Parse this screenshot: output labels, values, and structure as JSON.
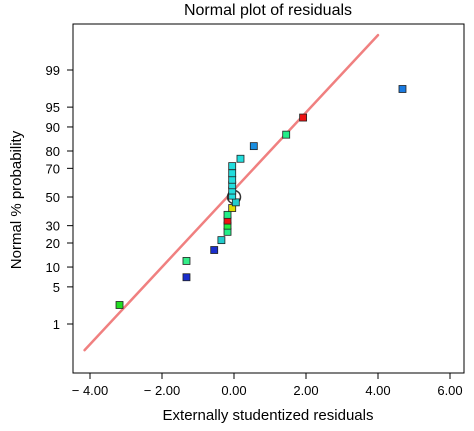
{
  "chart_data": {
    "type": "scatter",
    "title": "Normal plot of residuals",
    "xlabel": "Externally studentized residuals",
    "ylabel": "Normal % probability",
    "xlim": [
      -4.5,
      6.3
    ],
    "x_ticks": [
      {
        "value": -4,
        "label": "− 4.00"
      },
      {
        "value": -2,
        "label": "− 2.00"
      },
      {
        "value": 0,
        "label": "0.00"
      },
      {
        "value": 2,
        "label": "2.00"
      },
      {
        "value": 4,
        "label": "4.00"
      },
      {
        "value": 6,
        "label": "6.00"
      }
    ],
    "y_scale": "normal-probability",
    "y_ticks": [
      {
        "value": 1,
        "label": "1"
      },
      {
        "value": 5,
        "label": "5"
      },
      {
        "value": 10,
        "label": "10"
      },
      {
        "value": 20,
        "label": "20"
      },
      {
        "value": 30,
        "label": "30"
      },
      {
        "value": 50,
        "label": "50"
      },
      {
        "value": 70,
        "label": "70"
      },
      {
        "value": 80,
        "label": "80"
      },
      {
        "value": 90,
        "label": "90"
      },
      {
        "value": 95,
        "label": "95"
      },
      {
        "value": 99,
        "label": "99"
      }
    ],
    "reference_line": {
      "color": "#f08080",
      "points": [
        [
          -4.15,
          0.25
        ],
        [
          4.0,
          99.85
        ]
      ]
    },
    "points": [
      {
        "x": -3.18,
        "y": 2.4,
        "color": "#22dd22"
      },
      {
        "x": -1.32,
        "y": 7.1,
        "color": "#1a2ecc"
      },
      {
        "x": -1.32,
        "y": 12.1,
        "color": "#33ee88"
      },
      {
        "x": -0.55,
        "y": 16.6,
        "color": "#1a2ecc"
      },
      {
        "x": -0.35,
        "y": 21.5,
        "color": "#22cccc"
      },
      {
        "x": -0.18,
        "y": 26.2,
        "color": "#22ee88"
      },
      {
        "x": -0.18,
        "y": 30.0,
        "color": "#22ee44"
      },
      {
        "x": -0.18,
        "y": 33.3,
        "color": "#ee1111"
      },
      {
        "x": -0.18,
        "y": 37.2,
        "color": "#22ee88"
      },
      {
        "x": -0.05,
        "y": 42.0,
        "color": "#dddd00"
      },
      {
        "x": 0.05,
        "y": 46.1,
        "color": "#22cccc"
      },
      {
        "x": -0.05,
        "y": 51.0,
        "color": "#22dddd"
      },
      {
        "x": -0.05,
        "y": 54.7,
        "color": "#22dddd"
      },
      {
        "x": -0.05,
        "y": 58.5,
        "color": "#22dddd"
      },
      {
        "x": -0.05,
        "y": 62.4,
        "color": "#22dddd"
      },
      {
        "x": -0.05,
        "y": 66.8,
        "color": "#22dddd"
      },
      {
        "x": -0.05,
        "y": 71.4,
        "color": "#22dddd"
      },
      {
        "x": 0.18,
        "y": 75.8,
        "color": "#22dddd"
      },
      {
        "x": 0.55,
        "y": 82.4,
        "color": "#1a8ee0"
      },
      {
        "x": 1.45,
        "y": 87.3,
        "color": "#22ee88"
      },
      {
        "x": 1.92,
        "y": 92.7,
        "color": "#ee1111"
      },
      {
        "x": 4.68,
        "y": 97.6,
        "color": "#1a7ae0"
      }
    ],
    "highlight_point": {
      "x": 0.0,
      "y": 50.0
    },
    "grid": false
  }
}
